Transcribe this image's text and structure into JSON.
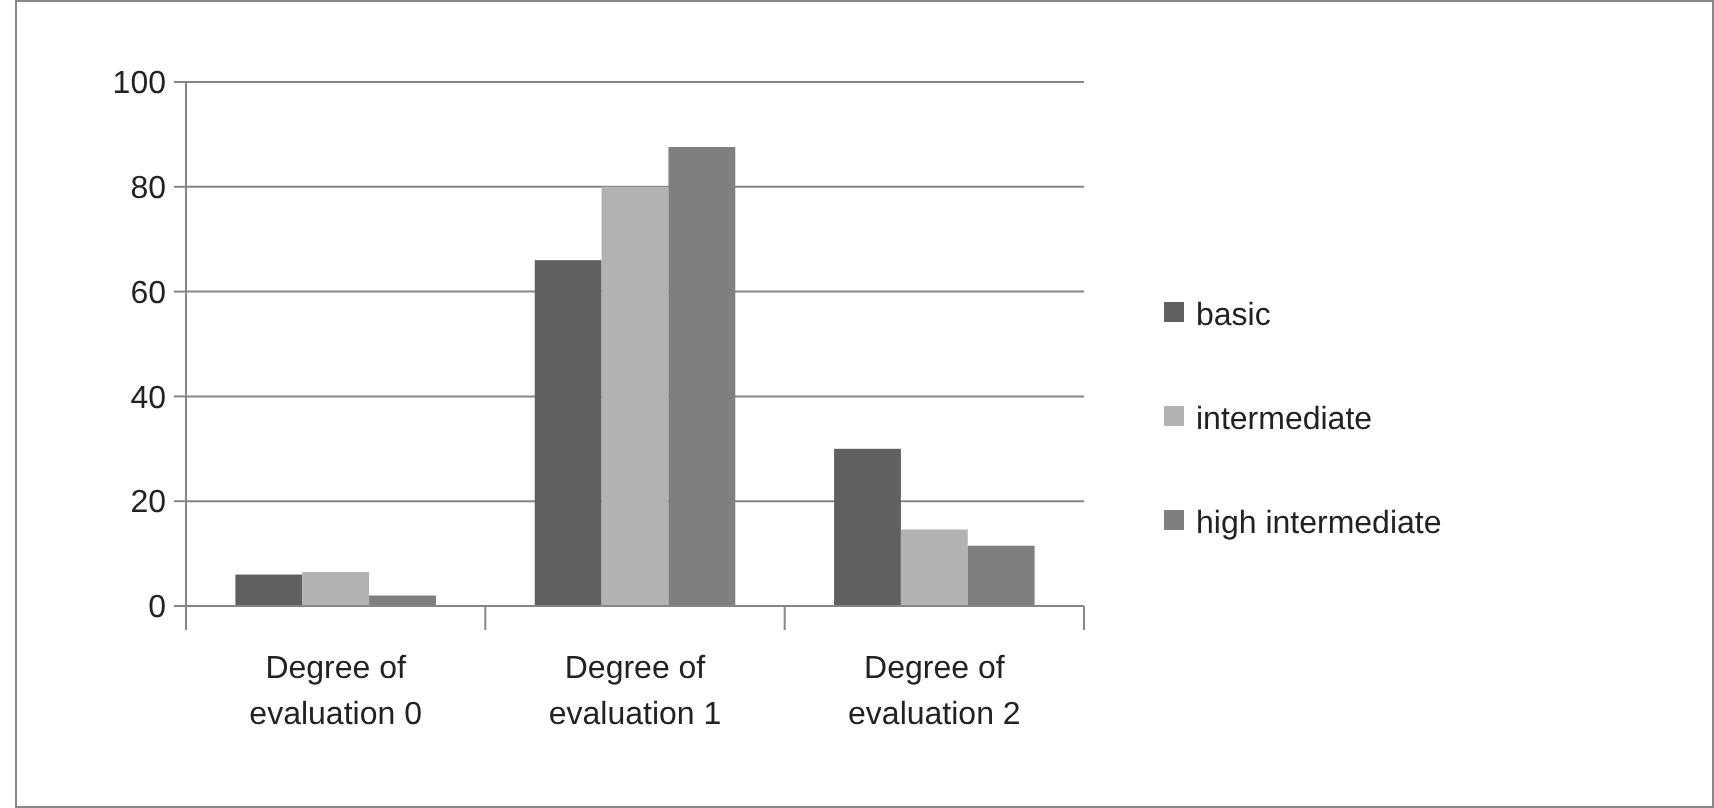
{
  "chart_data": {
    "type": "bar",
    "categories": [
      "Degree of evaluation 0",
      "Degree of evaluation 1",
      "Degree of evaluation 2"
    ],
    "series": [
      {
        "name": "basic",
        "color": "#606060",
        "values": [
          6,
          66,
          30
        ]
      },
      {
        "name": "intermediate",
        "color": "#b2b2b2",
        "values": [
          6.5,
          80,
          14.6
        ]
      },
      {
        "name": "high intermediate",
        "color": "#7f7f7f",
        "values": [
          2,
          87.6,
          11.5
        ]
      }
    ],
    "ylim": [
      0,
      100
    ],
    "yticks": [
      0,
      20,
      40,
      60,
      80,
      100
    ],
    "grid": "y",
    "legend": "right"
  }
}
